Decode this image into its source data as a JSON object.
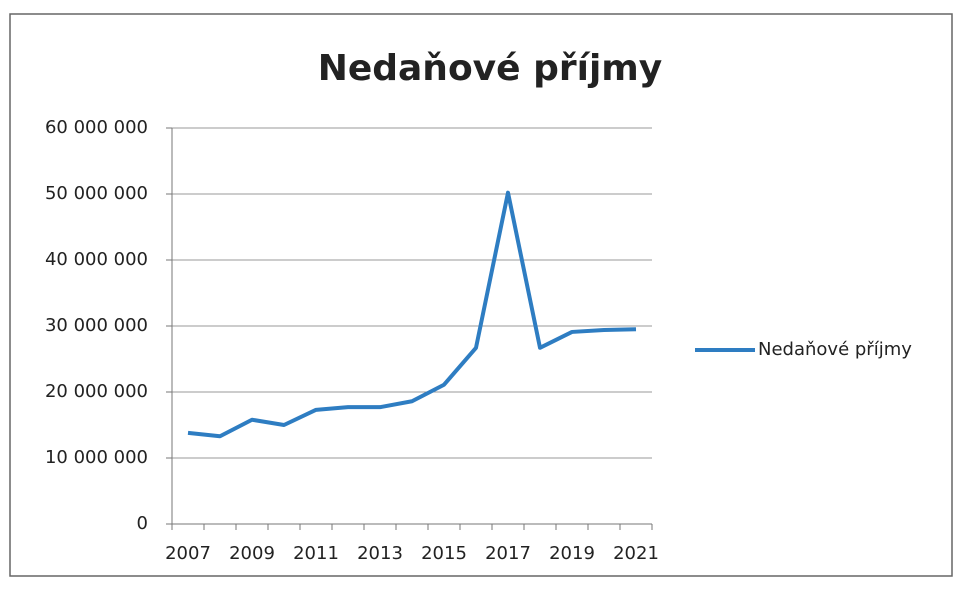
{
  "chart_data": {
    "type": "line",
    "title": "Nedaňové příjmy",
    "categories": [
      "2007",
      null,
      "2009",
      null,
      "2011",
      null,
      "2013",
      null,
      "2015",
      null,
      "2017",
      null,
      "2019",
      null,
      "2021"
    ],
    "series": [
      {
        "name": "Nedaňové příjmy",
        "color": "#2e7dc2",
        "values": [
          13800000,
          13300000,
          15800000,
          15000000,
          17300000,
          17700000,
          17700000,
          18600000,
          21100000,
          26700000,
          50200000,
          26700000,
          29100000,
          29400000,
          29500000
        ]
      }
    ],
    "ylim": [
      0,
      60000000
    ],
    "yticks": [
      0,
      {
        "value": 10000000,
        "label": "10 000 000"
      },
      {
        "value": 20000000,
        "label": "20 000 000"
      },
      {
        "value": 30000000,
        "label": "30 000 000"
      },
      {
        "value": 40000000,
        "label": "40 000 000"
      },
      {
        "value": 50000000,
        "label": "50 000 000"
      },
      {
        "value": 60000000,
        "label": "60 000 000"
      }
    ],
    "grid": true,
    "legend": "right"
  }
}
